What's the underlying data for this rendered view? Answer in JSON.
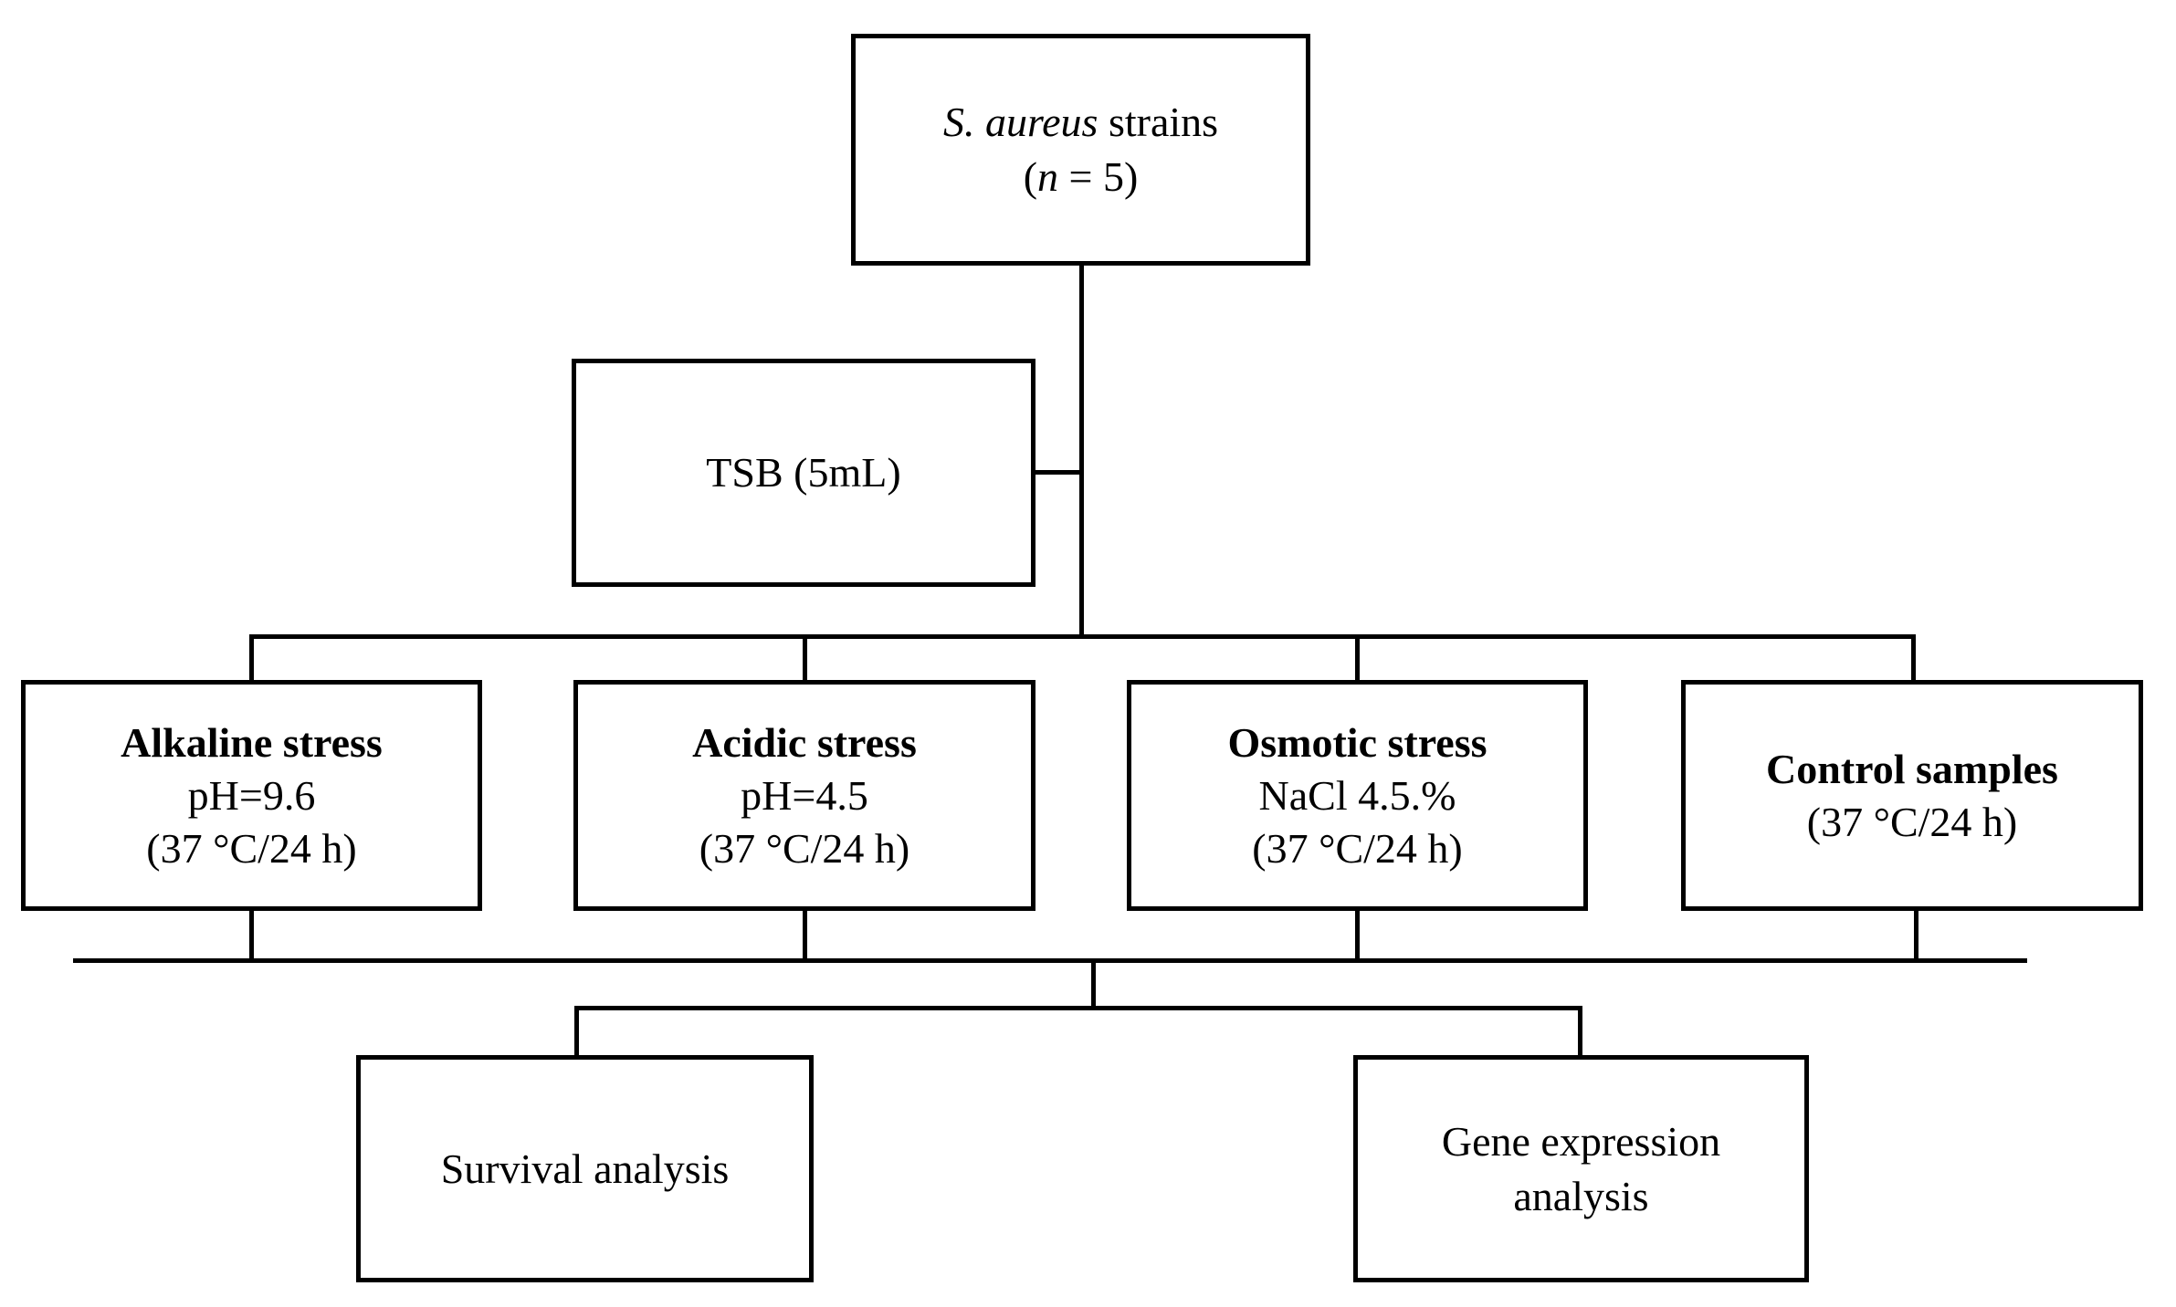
{
  "figure": {
    "background_color": "#ffffff",
    "line_color": "#000000"
  },
  "boxes": {
    "strains": {
      "line1_italic": "S. aureus",
      "line1_rest": " strains",
      "line2_open": "(",
      "line2_italic": "n",
      "line2_rest": " = 5)"
    },
    "tsb": {
      "label": "TSB (5mL)"
    },
    "alkaline": {
      "title": "Alkaline stress",
      "value": "pH=9.6",
      "condition": "(37 °C/24 h)"
    },
    "acidic": {
      "title": "Acidic stress",
      "value": "pH=4.5",
      "condition": "(37 °C/24 h)"
    },
    "osmotic": {
      "title": "Osmotic stress",
      "value": "NaCl 4.5.%",
      "condition": "(37 °C/24 h)"
    },
    "control": {
      "title": "Control samples",
      "condition": "(37 °C/24 h)"
    },
    "survival": {
      "label": "Survival analysis"
    },
    "gene": {
      "label_line1": "Gene expression",
      "label_line2": "analysis"
    }
  }
}
